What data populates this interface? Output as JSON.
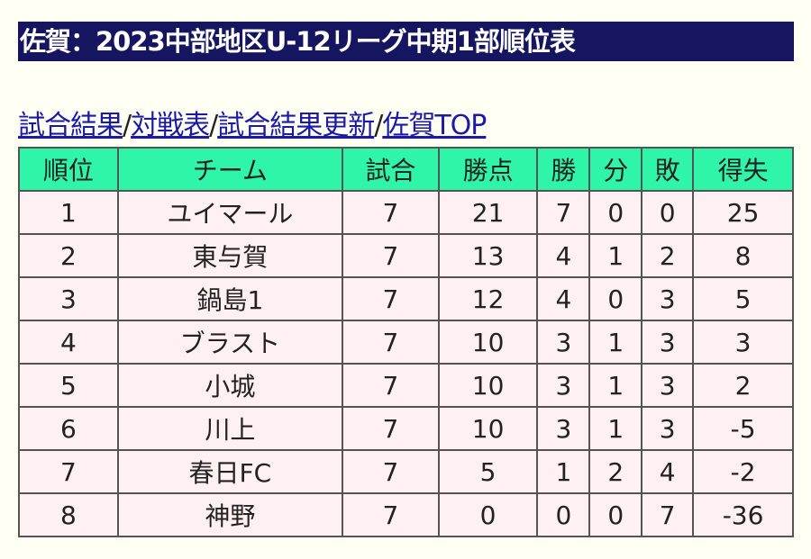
{
  "title": "佐賀：2023中部地区U-12リーグ中期1部順位表",
  "links": [
    {
      "label": "試合結果"
    },
    {
      "label": "対戦表"
    },
    {
      "label": "試合結果更新"
    },
    {
      "label": "佐賀TOP"
    }
  ],
  "separator": "/",
  "table": {
    "headers": [
      "順位",
      "チーム",
      "試合",
      "勝点",
      "勝",
      "分",
      "敗",
      "得失"
    ],
    "rows": [
      [
        "1",
        "ユイマール",
        "7",
        "21",
        "7",
        "0",
        "0",
        "25"
      ],
      [
        "2",
        "東与賀",
        "7",
        "13",
        "4",
        "1",
        "2",
        "8"
      ],
      [
        "3",
        "鍋島1",
        "7",
        "12",
        "4",
        "0",
        "3",
        "5"
      ],
      [
        "4",
        "ブラスト",
        "7",
        "10",
        "3",
        "1",
        "3",
        "3"
      ],
      [
        "5",
        "小城",
        "7",
        "10",
        "3",
        "1",
        "3",
        "2"
      ],
      [
        "6",
        "川上",
        "7",
        "10",
        "3",
        "1",
        "3",
        "-5"
      ],
      [
        "7",
        "春日FC",
        "7",
        "5",
        "1",
        "2",
        "4",
        "-2"
      ],
      [
        "8",
        "神野",
        "7",
        "0",
        "0",
        "0",
        "7",
        "-36"
      ]
    ]
  }
}
